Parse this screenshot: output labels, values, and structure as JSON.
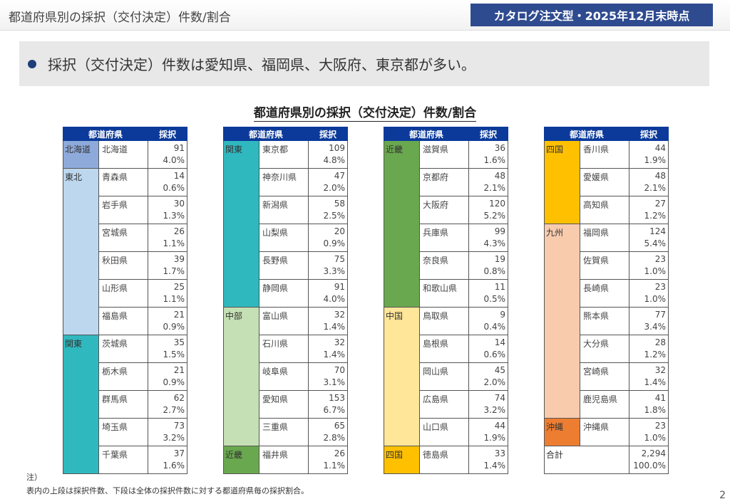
{
  "header": {
    "title": "都道府県別の採択（交付決定）件数/割合",
    "badge": "カタログ注文型・2025年12月末時点"
  },
  "banner": {
    "text": "採択（交付決定）件数は愛知県、福岡県、大阪府、東京都が多い。"
  },
  "section_title": "都道府県別の採択（交付決定）件数/割合",
  "columns": {
    "pref": "都道府県",
    "count": "採択"
  },
  "tables": [
    [
      {
        "region": "北海道",
        "color": "#8eaadb",
        "rows": [
          [
            "北海道",
            "91",
            "4.0%"
          ]
        ]
      },
      {
        "region": "東北",
        "color": "#bdd7ee",
        "rows": [
          [
            "青森県",
            "14",
            "0.6%"
          ],
          [
            "岩手県",
            "30",
            "1.3%"
          ],
          [
            "宮城県",
            "26",
            "1.1%"
          ],
          [
            "秋田県",
            "39",
            "1.7%"
          ],
          [
            "山形県",
            "25",
            "1.1%"
          ],
          [
            "福島県",
            "21",
            "0.9%"
          ]
        ]
      },
      {
        "region": "関東",
        "color": "#2fb8be",
        "rows": [
          [
            "茨城県",
            "35",
            "1.5%"
          ],
          [
            "栃木県",
            "21",
            "0.9%"
          ],
          [
            "群馬県",
            "62",
            "2.7%"
          ],
          [
            "埼玉県",
            "73",
            "3.2%"
          ],
          [
            "千葉県",
            "37",
            "1.6%"
          ]
        ]
      }
    ],
    [
      {
        "region": "関東",
        "color": "#2fb8be",
        "rows": [
          [
            "東京都",
            "109",
            "4.8%"
          ],
          [
            "神奈川県",
            "47",
            "2.0%"
          ],
          [
            "新潟県",
            "58",
            "2.5%"
          ],
          [
            "山梨県",
            "20",
            "0.9%"
          ],
          [
            "長野県",
            "75",
            "3.3%"
          ],
          [
            "静岡県",
            "91",
            "4.0%"
          ]
        ]
      },
      {
        "region": "中部",
        "color": "#c5e0b4",
        "rows": [
          [
            "富山県",
            "32",
            "1.4%"
          ],
          [
            "石川県",
            "32",
            "1.4%"
          ],
          [
            "岐阜県",
            "70",
            "3.1%"
          ],
          [
            "愛知県",
            "153",
            "6.7%"
          ],
          [
            "三重県",
            "65",
            "2.8%"
          ]
        ]
      },
      {
        "region": "近畿",
        "color": "#6aa84f",
        "rows": [
          [
            "福井県",
            "26",
            "1.1%"
          ]
        ]
      }
    ],
    [
      {
        "region": "近畿",
        "color": "#6aa84f",
        "rows": [
          [
            "滋賀県",
            "36",
            "1.6%"
          ],
          [
            "京都府",
            "48",
            "2.1%"
          ],
          [
            "大阪府",
            "120",
            "5.2%"
          ],
          [
            "兵庫県",
            "99",
            "4.3%"
          ],
          [
            "奈良県",
            "19",
            "0.8%"
          ],
          [
            "和歌山県",
            "11",
            "0.5%"
          ]
        ]
      },
      {
        "region": "中国",
        "color": "#ffe699",
        "rows": [
          [
            "鳥取県",
            "9",
            "0.4%"
          ],
          [
            "島根県",
            "14",
            "0.6%"
          ],
          [
            "岡山県",
            "45",
            "2.0%"
          ],
          [
            "広島県",
            "74",
            "3.2%"
          ],
          [
            "山口県",
            "44",
            "1.9%"
          ]
        ]
      },
      {
        "region": "四国",
        "color": "#ffc000",
        "rows": [
          [
            "徳島県",
            "33",
            "1.4%"
          ]
        ]
      }
    ],
    [
      {
        "region": "四国",
        "color": "#ffc000",
        "rows": [
          [
            "香川県",
            "44",
            "1.9%"
          ],
          [
            "愛媛県",
            "48",
            "2.1%"
          ],
          [
            "高知県",
            "27",
            "1.2%"
          ]
        ]
      },
      {
        "region": "九州",
        "color": "#f8cbad",
        "rows": [
          [
            "福岡県",
            "124",
            "5.4%"
          ],
          [
            "佐賀県",
            "23",
            "1.0%"
          ],
          [
            "長崎県",
            "23",
            "1.0%"
          ],
          [
            "熊本県",
            "77",
            "3.4%"
          ],
          [
            "大分県",
            "28",
            "1.2%"
          ],
          [
            "宮崎県",
            "32",
            "1.4%"
          ],
          [
            "鹿児島県",
            "41",
            "1.8%"
          ]
        ]
      },
      {
        "region": "沖縄",
        "color": "#ed7d31",
        "rows": [
          [
            "沖縄県",
            "23",
            "1.0%"
          ]
        ]
      }
    ]
  ],
  "total": {
    "label": "合計",
    "count": "2,294",
    "pct": "100.0%"
  },
  "note": {
    "head": "注）",
    "text": "表内の上段は採択件数、下段は全体の採択件数に対する都道府県毎の採択割合。"
  },
  "page_number": "2"
}
